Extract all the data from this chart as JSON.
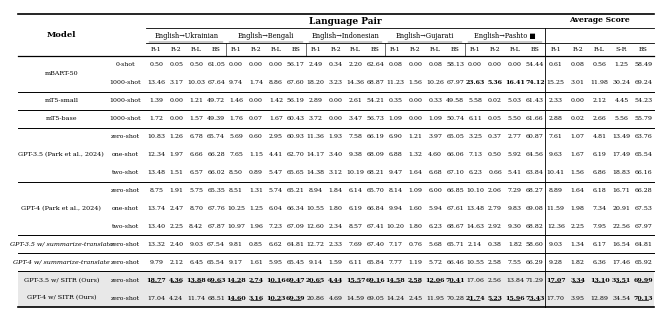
{
  "col_groups": [
    {
      "label": "English→Ukrainian",
      "cols": [
        "R-1",
        "R-2",
        "R-L",
        "BS"
      ]
    },
    {
      "label": "English→Bengali",
      "cols": [
        "R-1",
        "R-2",
        "R-L",
        "BS"
      ]
    },
    {
      "label": "English→Indonesian",
      "cols": [
        "R-1",
        "R-2",
        "R-L",
        "BS"
      ]
    },
    {
      "label": "English→Gujarati",
      "cols": [
        "R-1",
        "R-2",
        "R-L",
        "BS"
      ]
    },
    {
      "label": "English→Pashto ■",
      "cols": [
        "R-1",
        "R-2",
        "R-L",
        "BS"
      ]
    }
  ],
  "avg_cols": [
    "R-1",
    "R-2",
    "R-L",
    "S-R",
    "BS"
  ],
  "rows": [
    {
      "model": "mBART-50",
      "shot": "0-shot",
      "data": [
        0.5,
        0.05,
        0.5,
        61.05,
        0.0,
        0.0,
        0.0,
        56.17,
        2.49,
        0.34,
        2.2,
        62.64,
        0.08,
        0.0,
        0.08,
        58.13,
        0.0,
        0.0,
        0.0,
        54.44,
        0.61,
        0.08,
        0.56,
        1.25,
        58.49
      ],
      "bold": [],
      "underline": []
    },
    {
      "model": "mBART-50",
      "shot": "1000-shot",
      "data": [
        13.46,
        3.17,
        10.03,
        67.64,
        9.74,
        1.74,
        8.86,
        67.6,
        18.2,
        3.23,
        14.36,
        68.87,
        11.23,
        1.56,
        10.26,
        67.97,
        23.63,
        5.36,
        16.41,
        74.12,
        15.25,
        3.01,
        11.98,
        30.24,
        69.24
      ],
      "bold": [
        16,
        17,
        18,
        19
      ],
      "underline": []
    },
    {
      "model": "mT5-small",
      "shot": "1000-shot",
      "data": [
        1.39,
        0.0,
        1.21,
        49.72,
        1.46,
        0.0,
        1.42,
        56.19,
        2.89,
        0.0,
        2.61,
        54.21,
        0.35,
        0.0,
        0.33,
        49.58,
        5.58,
        0.02,
        5.03,
        61.43,
        2.33,
        0.0,
        2.12,
        4.45,
        54.23
      ],
      "bold": [],
      "underline": []
    },
    {
      "model": "mT5-base",
      "shot": "1000-shot",
      "data": [
        1.72,
        0.0,
        1.57,
        49.39,
        1.76,
        0.07,
        1.67,
        60.43,
        3.72,
        0.0,
        3.47,
        56.73,
        1.09,
        0.0,
        1.09,
        50.74,
        6.11,
        0.05,
        5.5,
        61.66,
        2.88,
        0.02,
        2.66,
        5.56,
        55.79
      ],
      "bold": [],
      "underline": []
    },
    {
      "model": "GPT-3.5 (Park et al., 2024)",
      "shot": "zero-shot",
      "data": [
        10.83,
        1.26,
        6.78,
        65.74,
        5.69,
        0.6,
        2.95,
        60.93,
        11.36,
        1.93,
        7.58,
        66.19,
        6.9,
        1.21,
        3.97,
        65.05,
        3.25,
        0.37,
        2.77,
        60.87,
        7.61,
        1.07,
        4.81,
        13.49,
        63.76
      ],
      "bold": [],
      "underline": []
    },
    {
      "model": "GPT-3.5 (Park et al., 2024)",
      "shot": "one-shot",
      "data": [
        12.34,
        1.97,
        6.66,
        66.28,
        7.65,
        1.15,
        4.41,
        62.7,
        14.17,
        3.4,
        9.38,
        68.09,
        6.88,
        1.32,
        4.6,
        66.06,
        7.13,
        0.5,
        5.92,
        64.56,
        9.63,
        1.67,
        6.19,
        17.49,
        65.54
      ],
      "bold": [],
      "underline": []
    },
    {
      "model": "GPT-3.5 (Park et al., 2024)",
      "shot": "two-shot",
      "data": [
        13.48,
        1.51,
        6.57,
        66.02,
        8.5,
        0.89,
        5.47,
        65.65,
        14.38,
        3.12,
        10.19,
        68.21,
        9.47,
        1.64,
        6.68,
        67.1,
        6.23,
        0.66,
        5.41,
        63.84,
        10.41,
        1.56,
        6.86,
        18.83,
        66.16
      ],
      "bold": [],
      "underline": []
    },
    {
      "model": "GPT-4 (Park et al., 2024)",
      "shot": "zero-shot",
      "data": [
        8.75,
        1.91,
        5.75,
        65.35,
        8.51,
        1.31,
        5.74,
        65.21,
        8.94,
        1.84,
        6.14,
        65.7,
        8.14,
        1.09,
        6.0,
        66.85,
        10.1,
        2.06,
        7.29,
        68.27,
        8.89,
        1.64,
        6.18,
        16.71,
        66.28
      ],
      "bold": [],
      "underline": []
    },
    {
      "model": "GPT-4 (Park et al., 2024)",
      "shot": "one-shot",
      "data": [
        13.74,
        2.47,
        8.7,
        67.76,
        10.25,
        1.25,
        6.04,
        66.34,
        10.55,
        1.8,
        6.19,
        66.84,
        9.94,
        1.6,
        5.94,
        67.61,
        13.48,
        2.79,
        9.83,
        69.08,
        11.59,
        1.98,
        7.34,
        20.91,
        67.53
      ],
      "bold": [],
      "underline": []
    },
    {
      "model": "GPT-4 (Park et al., 2024)",
      "shot": "two-shot",
      "data": [
        13.4,
        2.25,
        8.42,
        67.87,
        10.97,
        1.96,
        7.23,
        67.09,
        12.6,
        2.34,
        8.57,
        67.41,
        10.2,
        1.8,
        6.23,
        68.67,
        14.63,
        2.92,
        9.3,
        68.82,
        12.36,
        2.25,
        7.95,
        22.56,
        67.97
      ],
      "bold": [],
      "underline": []
    },
    {
      "model": "GPT-3.5 w/ summarize-translate",
      "shot": "zero-shot",
      "data": [
        13.32,
        2.4,
        9.03,
        67.54,
        9.81,
        0.85,
        6.62,
        64.81,
        12.72,
        2.33,
        7.69,
        67.4,
        7.17,
        0.76,
        5.68,
        65.71,
        2.14,
        0.38,
        1.82,
        58.6,
        9.03,
        1.34,
        6.17,
        16.54,
        64.81
      ],
      "bold": [],
      "underline": []
    },
    {
      "model": "GPT-4 w/ summarize-translate",
      "shot": "zero-shot",
      "data": [
        9.79,
        2.12,
        6.45,
        65.54,
        9.17,
        1.61,
        5.95,
        65.45,
        9.14,
        1.59,
        6.11,
        65.84,
        7.77,
        1.19,
        5.72,
        66.46,
        10.55,
        2.58,
        7.55,
        66.29,
        9.28,
        1.82,
        6.36,
        17.46,
        65.92
      ],
      "bold": [],
      "underline": []
    },
    {
      "model": "GPT-3.5 w/ SITR (Ours)",
      "shot": "zero-shot",
      "data": [
        18.77,
        4.36,
        13.88,
        69.63,
        14.28,
        2.74,
        10.16,
        69.47,
        20.65,
        4.44,
        15.57,
        69.16,
        14.58,
        2.58,
        12.06,
        70.41,
        17.06,
        2.56,
        13.84,
        71.29,
        17.07,
        3.34,
        13.1,
        33.51,
        69.99
      ],
      "bold": [
        0,
        1,
        2,
        3,
        4,
        5,
        6,
        7,
        8,
        9,
        10,
        11,
        12,
        13,
        14,
        15,
        20,
        21,
        22,
        23,
        24
      ],
      "underline": [
        0,
        1,
        2,
        3,
        4,
        5,
        6,
        7,
        8,
        9,
        10,
        11,
        12,
        13,
        14,
        15,
        20,
        21,
        22,
        23,
        24
      ]
    },
    {
      "model": "GPT-4 w/ SITR (Ours)",
      "shot": "zero-shot",
      "data": [
        17.04,
        4.24,
        11.74,
        68.51,
        14.6,
        3.16,
        10.23,
        69.39,
        20.86,
        4.69,
        14.59,
        69.05,
        14.24,
        2.45,
        11.95,
        70.28,
        21.74,
        5.23,
        15.96,
        73.43,
        17.7,
        3.95,
        12.89,
        34.54,
        70.13
      ],
      "bold": [
        4,
        5,
        6,
        7,
        16,
        17,
        18,
        19,
        24
      ],
      "underline": [
        4,
        5,
        6,
        7,
        16,
        17,
        18,
        19,
        24
      ]
    }
  ],
  "thick_sep_after": [
    1,
    2,
    3,
    6,
    9,
    10,
    11
  ],
  "highlight_rows": [
    12,
    13
  ],
  "model_italic": [
    "GPT-3.5 w/ summarize-translate",
    "GPT-4 w/ summarize-translate"
  ]
}
